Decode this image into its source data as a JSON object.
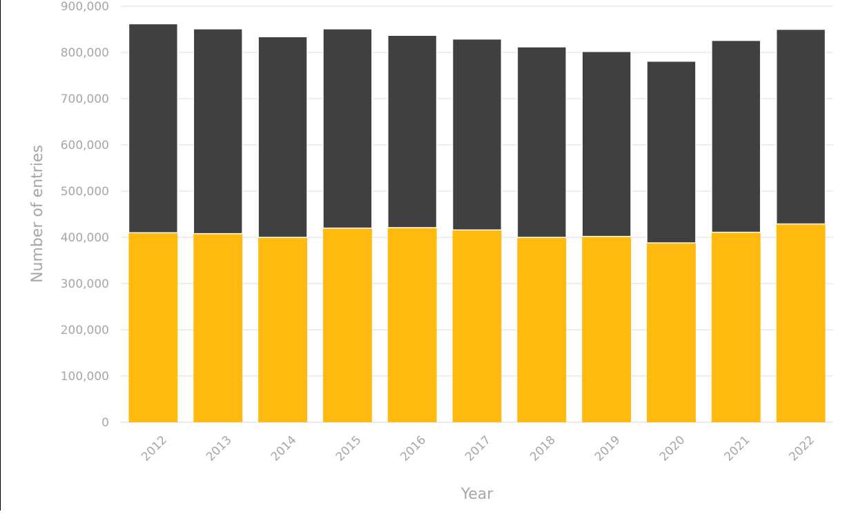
{
  "chart_data": {
    "type": "bar",
    "stacked": true,
    "categories": [
      "2012",
      "2013",
      "2014",
      "2015",
      "2016",
      "2017",
      "2018",
      "2019",
      "2020",
      "2021",
      "2022"
    ],
    "series": [
      {
        "color": "#ffb90f",
        "values": [
          410000,
          408000,
          400000,
          420000,
          421000,
          416000,
          400000,
          402000,
          388000,
          411000,
          429000
        ]
      },
      {
        "color": "#404040",
        "values": [
          452000,
          443000,
          434000,
          431000,
          416000,
          413000,
          412000,
          400000,
          393000,
          415000,
          421000
        ]
      }
    ],
    "title": "",
    "xlabel": "Year",
    "ylabel": "Number of entries",
    "ylim": [
      0,
      900000
    ],
    "yticks": [
      "0",
      "100,000",
      "200,000",
      "300,000",
      "400,000",
      "500,000",
      "600,000",
      "700,000",
      "800,000",
      "900,000"
    ],
    "grid": true,
    "legend": "none"
  }
}
